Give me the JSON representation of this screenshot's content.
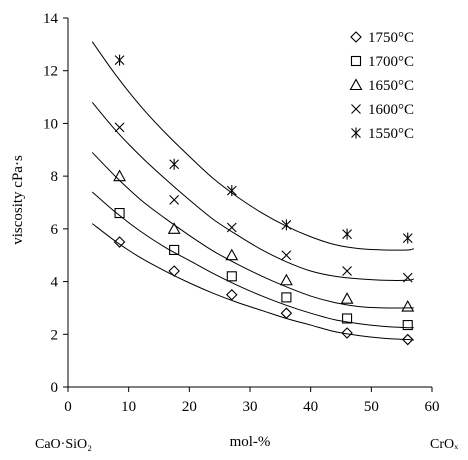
{
  "chart_data": {
    "type": "scatter",
    "title": "",
    "xlabel": "mol-%",
    "ylabel": "viscosity cPa·s",
    "x_left_label": "CaO·SiO₂",
    "x_right_label": "CrOₓ",
    "xlim": [
      0,
      60
    ],
    "ylim": [
      0,
      14
    ],
    "x_ticks": [
      "0",
      "10",
      "20",
      "30",
      "40",
      "50",
      "60"
    ],
    "y_ticks": [
      "0",
      "2",
      "4",
      "6",
      "8",
      "10",
      "12",
      "14"
    ],
    "grid": false,
    "legend_position": "top-right",
    "series": [
      {
        "name": "1750°C",
        "marker": "diamond",
        "x": [
          8.5,
          17.5,
          27,
          36,
          46,
          56
        ],
        "y": [
          5.5,
          4.4,
          3.5,
          2.8,
          2.05,
          1.8
        ],
        "fit_x": [
          4,
          8,
          12,
          16,
          20,
          24,
          28,
          32,
          36,
          40,
          44,
          48,
          52,
          56,
          57
        ],
        "fit_y": [
          6.2,
          5.5,
          4.9,
          4.4,
          3.95,
          3.55,
          3.2,
          2.9,
          2.6,
          2.35,
          2.1,
          1.95,
          1.85,
          1.8,
          1.78
        ]
      },
      {
        "name": "1700°C",
        "marker": "square",
        "x": [
          8.5,
          17.5,
          27,
          36,
          46,
          56
        ],
        "y": [
          6.6,
          5.2,
          4.2,
          3.4,
          2.6,
          2.35
        ],
        "fit_x": [
          4,
          8,
          12,
          16,
          20,
          24,
          28,
          32,
          36,
          40,
          44,
          48,
          52,
          56,
          57
        ],
        "fit_y": [
          7.4,
          6.6,
          5.9,
          5.3,
          4.8,
          4.3,
          3.85,
          3.45,
          3.1,
          2.8,
          2.55,
          2.4,
          2.3,
          2.25,
          2.25
        ]
      },
      {
        "name": "1650°C",
        "marker": "triangle",
        "x": [
          8.5,
          17.5,
          27,
          36,
          46,
          56
        ],
        "y": [
          8.0,
          6.0,
          5.0,
          4.05,
          3.35,
          3.05
        ],
        "fit_x": [
          4,
          8,
          12,
          16,
          20,
          24,
          28,
          32,
          36,
          40,
          44,
          48,
          52,
          56,
          57
        ],
        "fit_y": [
          8.9,
          7.95,
          7.1,
          6.4,
          5.75,
          5.15,
          4.65,
          4.2,
          3.8,
          3.45,
          3.2,
          3.05,
          3.0,
          3.0,
          3.0
        ]
      },
      {
        "name": "1600°C",
        "marker": "x",
        "x": [
          8.5,
          17.5,
          27,
          36,
          46,
          56
        ],
        "y": [
          9.85,
          7.1,
          6.05,
          5.0,
          4.4,
          4.15
        ],
        "fit_x": [
          4,
          8,
          12,
          16,
          20,
          24,
          28,
          32,
          36,
          40,
          44,
          48,
          52,
          56,
          57
        ],
        "fit_y": [
          10.8,
          9.7,
          8.75,
          7.9,
          7.1,
          6.35,
          5.75,
          5.2,
          4.75,
          4.4,
          4.2,
          4.1,
          4.05,
          4.05,
          4.1
        ]
      },
      {
        "name": "1550°C",
        "marker": "asterisk",
        "x": [
          8.5,
          17.5,
          27,
          36,
          46,
          56
        ],
        "y": [
          12.4,
          8.45,
          7.45,
          6.15,
          5.8,
          5.65
        ],
        "fit_x": [
          4,
          8,
          12,
          16,
          20,
          24,
          28,
          32,
          36,
          40,
          44,
          48,
          52,
          56,
          57
        ],
        "fit_y": [
          13.1,
          11.8,
          10.65,
          9.65,
          8.75,
          7.9,
          7.2,
          6.6,
          6.1,
          5.7,
          5.4,
          5.25,
          5.2,
          5.2,
          5.25
        ]
      }
    ]
  }
}
